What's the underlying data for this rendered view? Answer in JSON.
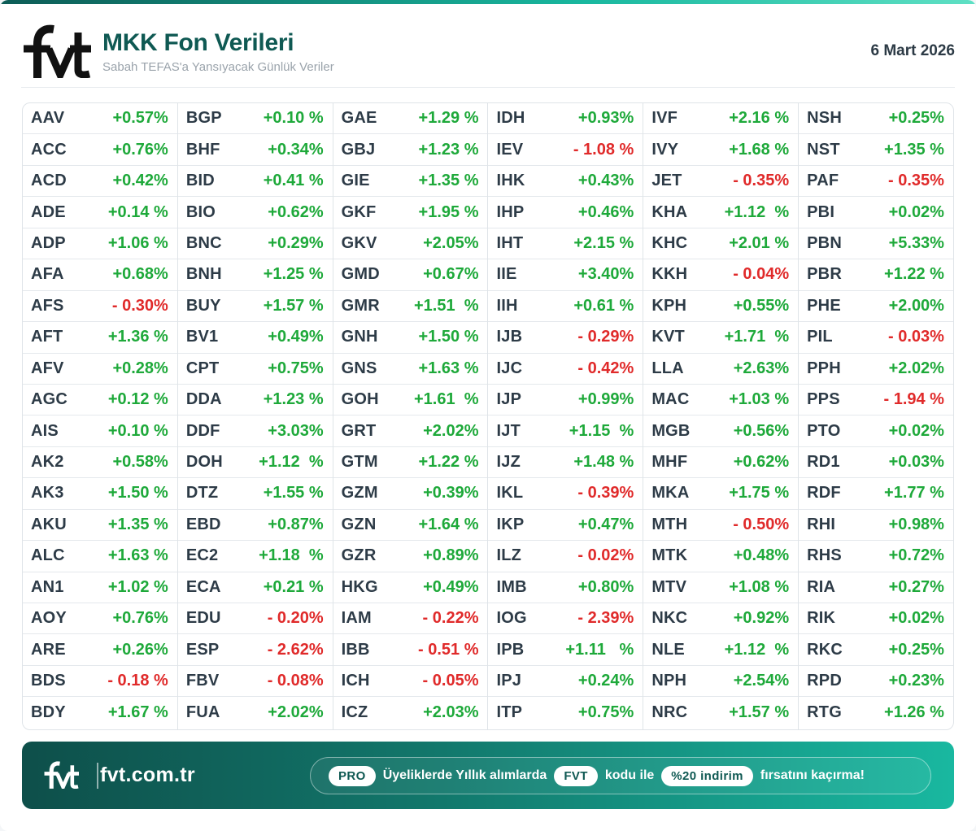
{
  "header": {
    "title": "MKK Fon Verileri",
    "subtitle": "Sabah TEFAS'a Yansıyacak Günlük Veriler",
    "date": "6 Mart 2026"
  },
  "colors": {
    "positive": "#1ea93a",
    "negative": "#e02a2a",
    "brand": "#0f5953"
  },
  "columns": [
    [
      {
        "code": "AAV",
        "change": "+0.57%"
      },
      {
        "code": "ACC",
        "change": "+0.76%"
      },
      {
        "code": "ACD",
        "change": "+0.42%"
      },
      {
        "code": "ADE",
        "change": "+0.14 %"
      },
      {
        "code": "ADP",
        "change": "+1.06 %"
      },
      {
        "code": "AFA",
        "change": "+0.68%"
      },
      {
        "code": "AFS",
        "change": "- 0.30%"
      },
      {
        "code": "AFT",
        "change": "+1.36 %"
      },
      {
        "code": "AFV",
        "change": "+0.28%"
      },
      {
        "code": "AGC",
        "change": "+0.12 %"
      },
      {
        "code": "AIS",
        "change": "+0.10 %"
      },
      {
        "code": "AK2",
        "change": "+0.58%"
      },
      {
        "code": "AK3",
        "change": "+1.50 %"
      },
      {
        "code": "AKU",
        "change": "+1.35 %"
      },
      {
        "code": "ALC",
        "change": "+1.63 %"
      },
      {
        "code": "AN1",
        "change": "+1.02 %"
      },
      {
        "code": "AOY",
        "change": "+0.76%"
      },
      {
        "code": "ARE",
        "change": "+0.26%"
      },
      {
        "code": "BDS",
        "change": "- 0.18 %"
      },
      {
        "code": "BDY",
        "change": "+1.67 %"
      }
    ],
    [
      {
        "code": "BGP",
        "change": "+0.10 %"
      },
      {
        "code": "BHF",
        "change": "+0.34%"
      },
      {
        "code": "BID",
        "change": "+0.41 %"
      },
      {
        "code": "BIO",
        "change": "+0.62%"
      },
      {
        "code": "BNC",
        "change": "+0.29%"
      },
      {
        "code": "BNH",
        "change": "+1.25 %"
      },
      {
        "code": "BUY",
        "change": "+1.57 %"
      },
      {
        "code": "BV1",
        "change": "+0.49%"
      },
      {
        "code": "CPT",
        "change": "+0.75%"
      },
      {
        "code": "DDA",
        "change": "+1.23 %"
      },
      {
        "code": "DDF",
        "change": "+3.03%"
      },
      {
        "code": "DOH",
        "change": "+1.12  %"
      },
      {
        "code": "DTZ",
        "change": "+1.55 %"
      },
      {
        "code": "EBD",
        "change": "+0.87%"
      },
      {
        "code": "EC2",
        "change": "+1.18  %"
      },
      {
        "code": "ECA",
        "change": "+0.21 %"
      },
      {
        "code": "EDU",
        "change": "- 0.20%"
      },
      {
        "code": "ESP",
        "change": "- 2.62%"
      },
      {
        "code": "FBV",
        "change": "- 0.08%"
      },
      {
        "code": "FUA",
        "change": "+2.02%"
      }
    ],
    [
      {
        "code": "GAE",
        "change": "+1.29 %"
      },
      {
        "code": "GBJ",
        "change": "+1.23 %"
      },
      {
        "code": "GIE",
        "change": "+1.35 %"
      },
      {
        "code": "GKF",
        "change": "+1.95 %"
      },
      {
        "code": "GKV",
        "change": "+2.05%"
      },
      {
        "code": "GMD",
        "change": "+0.67%"
      },
      {
        "code": "GMR",
        "change": "+1.51  %"
      },
      {
        "code": "GNH",
        "change": "+1.50 %"
      },
      {
        "code": "GNS",
        "change": "+1.63 %"
      },
      {
        "code": "GOH",
        "change": "+1.61  %"
      },
      {
        "code": "GRT",
        "change": "+2.02%"
      },
      {
        "code": "GTM",
        "change": "+1.22 %"
      },
      {
        "code": "GZM",
        "change": "+0.39%"
      },
      {
        "code": "GZN",
        "change": "+1.64 %"
      },
      {
        "code": "GZR",
        "change": "+0.89%"
      },
      {
        "code": "HKG",
        "change": "+0.49%"
      },
      {
        "code": "IAM",
        "change": "- 0.22%"
      },
      {
        "code": "IBB",
        "change": "- 0.51 %"
      },
      {
        "code": "ICH",
        "change": "- 0.05%"
      },
      {
        "code": "ICZ",
        "change": "+2.03%"
      }
    ],
    [
      {
        "code": "IDH",
        "change": "+0.93%"
      },
      {
        "code": "IEV",
        "change": "- 1.08 %"
      },
      {
        "code": "IHK",
        "change": "+0.43%"
      },
      {
        "code": "IHP",
        "change": "+0.46%"
      },
      {
        "code": "IHT",
        "change": "+2.15 %"
      },
      {
        "code": "IIE",
        "change": "+3.40%"
      },
      {
        "code": "IIH",
        "change": "+0.61 %"
      },
      {
        "code": "IJB",
        "change": "- 0.29%"
      },
      {
        "code": "IJC",
        "change": "- 0.42%"
      },
      {
        "code": "IJP",
        "change": "+0.99%"
      },
      {
        "code": "IJT",
        "change": "+1.15  %"
      },
      {
        "code": "IJZ",
        "change": "+1.48 %"
      },
      {
        "code": "IKL",
        "change": "- 0.39%"
      },
      {
        "code": "IKP",
        "change": "+0.47%"
      },
      {
        "code": "ILZ",
        "change": "- 0.02%"
      },
      {
        "code": "IMB",
        "change": "+0.80%"
      },
      {
        "code": "IOG",
        "change": "- 2.39%"
      },
      {
        "code": "IPB",
        "change": "+1.11   %"
      },
      {
        "code": "IPJ",
        "change": "+0.24%"
      },
      {
        "code": "ITP",
        "change": "+0.75%"
      }
    ],
    [
      {
        "code": "IVF",
        "change": "+2.16 %"
      },
      {
        "code": "IVY",
        "change": "+1.68 %"
      },
      {
        "code": "JET",
        "change": "- 0.35%"
      },
      {
        "code": "KHA",
        "change": "+1.12  %"
      },
      {
        "code": "KHC",
        "change": "+2.01 %"
      },
      {
        "code": "KKH",
        "change": "- 0.04%"
      },
      {
        "code": "KPH",
        "change": "+0.55%"
      },
      {
        "code": "KVT",
        "change": "+1.71  %"
      },
      {
        "code": "LLA",
        "change": "+2.63%"
      },
      {
        "code": "MAC",
        "change": "+1.03 %"
      },
      {
        "code": "MGB",
        "change": "+0.56%"
      },
      {
        "code": "MHF",
        "change": "+0.62%"
      },
      {
        "code": "MKA",
        "change": "+1.75 %"
      },
      {
        "code": "MTH",
        "change": "- 0.50%"
      },
      {
        "code": "MTK",
        "change": "+0.48%"
      },
      {
        "code": "MTV",
        "change": "+1.08 %"
      },
      {
        "code": "NKC",
        "change": "+0.92%"
      },
      {
        "code": "NLE",
        "change": "+1.12  %"
      },
      {
        "code": "NPH",
        "change": "+2.54%"
      },
      {
        "code": "NRC",
        "change": "+1.57 %"
      }
    ],
    [
      {
        "code": "NSH",
        "change": "+0.25%"
      },
      {
        "code": "NST",
        "change": "+1.35 %"
      },
      {
        "code": "PAF",
        "change": "- 0.35%"
      },
      {
        "code": "PBI",
        "change": "+0.02%"
      },
      {
        "code": "PBN",
        "change": "+5.33%"
      },
      {
        "code": "PBR",
        "change": "+1.22 %"
      },
      {
        "code": "PHE",
        "change": "+2.00%"
      },
      {
        "code": "PIL",
        "change": "- 0.03%"
      },
      {
        "code": "PPH",
        "change": "+2.02%"
      },
      {
        "code": "PPS",
        "change": "- 1.94 %"
      },
      {
        "code": "PTO",
        "change": "+0.02%"
      },
      {
        "code": "RD1",
        "change": "+0.03%"
      },
      {
        "code": "RDF",
        "change": "+1.77 %"
      },
      {
        "code": "RHI",
        "change": "+0.98%"
      },
      {
        "code": "RHS",
        "change": "+0.72%"
      },
      {
        "code": "RIA",
        "change": "+0.27%"
      },
      {
        "code": "RIK",
        "change": "+0.02%"
      },
      {
        "code": "RKC",
        "change": "+0.25%"
      },
      {
        "code": "RPD",
        "change": "+0.23%"
      },
      {
        "code": "RTG",
        "change": "+1.26 %"
      }
    ]
  ],
  "footer": {
    "site": "fvt.com.tr",
    "promo": {
      "badge_pro": "PRO",
      "text1": "Üyeliklerde Yıllık alımlarda",
      "badge_code": "FVT",
      "text2": "kodu ile",
      "badge_discount": "%20 indirim",
      "text3": "fırsatını kaçırma!"
    }
  }
}
